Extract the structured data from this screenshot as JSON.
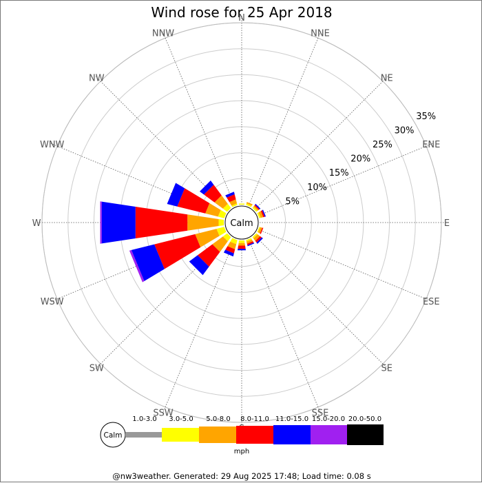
{
  "chart_data": {
    "type": "wind-rose",
    "title": "Wind rose for 25 Apr 2018",
    "directions": [
      "N",
      "NNE",
      "NE",
      "ENE",
      "E",
      "ESE",
      "SE",
      "SSE",
      "S",
      "SSW",
      "SW",
      "WSW",
      "W",
      "WNW",
      "NW",
      "NNW"
    ],
    "rings_pct": [
      5,
      10,
      15,
      20,
      25,
      30,
      35
    ],
    "ring_labels": [
      "5%",
      "10%",
      "15%",
      "20%",
      "25%",
      "30%",
      "35%"
    ],
    "calm_label": "Calm",
    "unit": "mph",
    "bins": [
      {
        "label": "1.0-3.0",
        "color": "#999999"
      },
      {
        "label": "3.0-5.0",
        "color": "#ffff00"
      },
      {
        "label": "5.0-8.0",
        "color": "#ffa500"
      },
      {
        "label": "8.0-11.0",
        "color": "#ff0000"
      },
      {
        "label": "11.0-15.0",
        "color": "#0000ff"
      },
      {
        "label": "15.0-20.0",
        "color": "#a020f0"
      },
      {
        "label": "20.0-50.0",
        "color": "#000000"
      }
    ],
    "values_pct": {
      "N": [
        0.0,
        0.2,
        0.0,
        0.0,
        0.0,
        0.0,
        0.0
      ],
      "NNE": [
        0.0,
        0.3,
        0.3,
        0.0,
        0.0,
        0.0,
        0.0
      ],
      "NE": [
        0.0,
        0.3,
        0.3,
        0.2,
        0.2,
        0.0,
        0.0
      ],
      "ENE": [
        0.0,
        0.3,
        0.5,
        0.3,
        0.2,
        0.0,
        0.0
      ],
      "E": [
        0.0,
        0.0,
        0.0,
        0.0,
        0.0,
        0.0,
        0.0
      ],
      "ESE": [
        0.0,
        0.2,
        0.4,
        0.2,
        0.0,
        0.0,
        0.0
      ],
      "SE": [
        0.0,
        0.3,
        0.6,
        0.4,
        0.3,
        0.0,
        0.0
      ],
      "SSE": [
        0.0,
        0.3,
        0.4,
        0.3,
        0.2,
        0.0,
        0.0
      ],
      "S": [
        0.0,
        0.5,
        0.5,
        0.6,
        0.3,
        0.0,
        0.0
      ],
      "SSW": [
        0.0,
        0.8,
        1.0,
        0.8,
        0.6,
        0.0,
        0.0
      ],
      "SW": [
        0.0,
        1.0,
        2.5,
        3.5,
        2.0,
        0.0,
        0.0
      ],
      "WSW": [
        0.0,
        1.5,
        4.2,
        8.0,
        4.5,
        0.4,
        0.0
      ],
      "W": [
        0.0,
        1.0,
        6.0,
        10.0,
        6.5,
        0.3,
        0.0
      ],
      "WNW": [
        0.0,
        1.2,
        2.5,
        5.5,
        2.0,
        0.0,
        0.0
      ],
      "NW": [
        0.0,
        1.0,
        2.0,
        2.5,
        1.0,
        0.0,
        0.0
      ],
      "NNW": [
        0.0,
        0.3,
        0.8,
        1.0,
        0.5,
        0.0,
        0.0
      ]
    },
    "grid": true
  },
  "footer": "@nw3weather. Generated: 29 Aug 2025 17:48; Load time: 0.08 s"
}
